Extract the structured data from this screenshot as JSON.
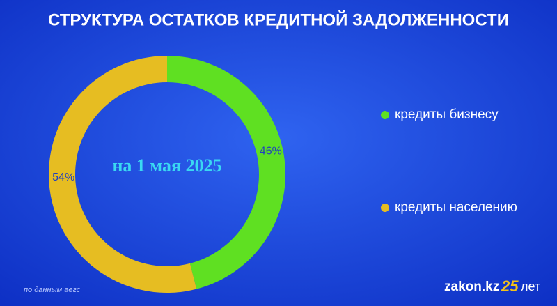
{
  "chart_data": {
    "type": "donut",
    "title": "СТРУКТУРА ОСТАТКОВ КРЕДИТНОЙ ЗАДОЛЖЕННОСТИ",
    "center_label": "на 1 мая 2025",
    "categories": [
      "кредиты бизнесу",
      "кредиты населению"
    ],
    "values": [
      46,
      54
    ],
    "value_labels": [
      "46%",
      "54%"
    ],
    "colors": [
      "#5fe022",
      "#e6bd22"
    ],
    "source": "по данным аегс"
  },
  "brand": {
    "name": "zakon.kz",
    "anniversary": "25",
    "anniversary_suffix": "лет"
  }
}
